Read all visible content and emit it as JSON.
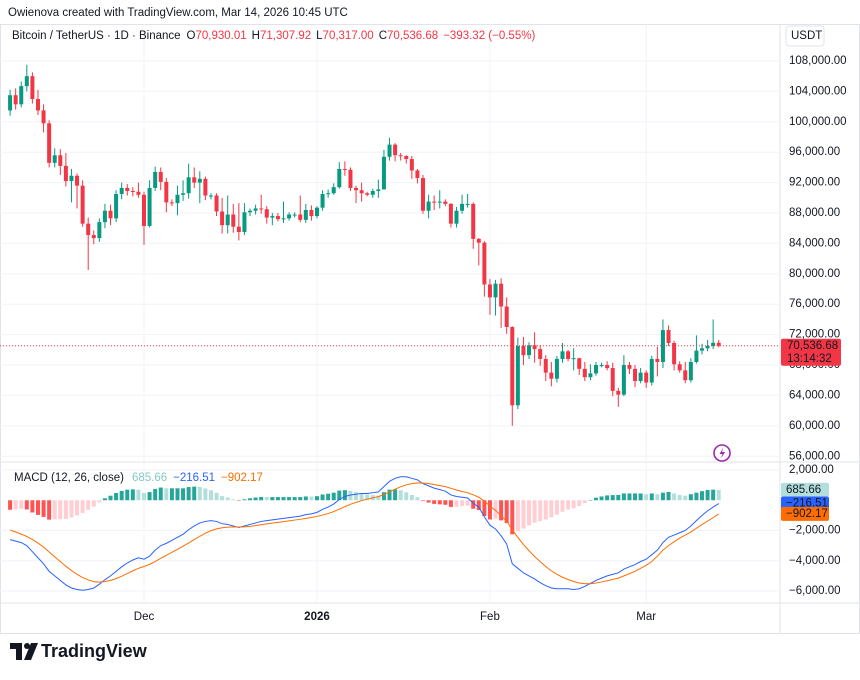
{
  "header": {
    "credit": "Owienova created with TradingView.com, Mar 14, 2026 10:45 UTC",
    "symbol": "Bitcoin / TetherUS · 1D · Binance",
    "ohlc": [
      {
        "key": "O",
        "value": "70,930.01"
      },
      {
        "key": "H",
        "value": "71,307.92"
      },
      {
        "key": "L",
        "value": "70,317.00"
      },
      {
        "key": "C",
        "value": "70,536.68"
      }
    ],
    "change": "−393.32 (−0.55%)"
  },
  "footer": {
    "brand": "TradingView"
  },
  "chart_data": {
    "type": "candlestick",
    "currency": "USDT",
    "categories": [
      null,
      null,
      null,
      null,
      null,
      null,
      null,
      null,
      null,
      null,
      null,
      null,
      null,
      null,
      null,
      null,
      null,
      null,
      null,
      null,
      null,
      null,
      null,
      null,
      "Dec",
      null,
      null,
      null,
      null,
      null,
      null,
      null,
      null,
      null,
      null,
      null,
      null,
      null,
      null,
      null,
      null,
      null,
      null,
      null,
      null,
      null,
      null,
      null,
      null,
      null,
      null,
      null,
      null,
      null,
      null,
      "2026",
      null,
      null,
      null,
      null,
      null,
      null,
      null,
      null,
      null,
      null,
      null,
      null,
      null,
      null,
      null,
      null,
      null,
      null,
      null,
      null,
      null,
      null,
      null,
      null,
      null,
      null,
      null,
      null,
      null,
      null,
      "Feb",
      null,
      null,
      null,
      null,
      null,
      null,
      null,
      null,
      null,
      null,
      null,
      null,
      null,
      null,
      null,
      null,
      null,
      null,
      null,
      null,
      null,
      null,
      null,
      null,
      null,
      null,
      null,
      "Mar",
      null,
      null,
      null,
      null,
      null,
      null,
      null,
      null,
      null,
      null,
      null,
      null,
      null
    ],
    "open": [
      101500,
      103500,
      102300,
      104700,
      106000,
      103000,
      101500,
      99800,
      94600,
      95600,
      94200,
      92200,
      92900,
      91600,
      86600,
      85100,
      84700,
      86800,
      88300,
      87300,
      90500,
      91300,
      90900,
      90800,
      90400,
      86300,
      91300,
      93400,
      92100,
      89400,
      89300,
      90400,
      90600,
      92700,
      92000,
      92500,
      90300,
      90300,
      88200,
      86400,
      87800,
      86200,
      85500,
      88100,
      88300,
      88600,
      88500,
      87400,
      87600,
      87200,
      87300,
      87800,
      87800,
      87100,
      88400,
      87600,
      88700,
      90500,
      90600,
      91400,
      93800,
      93700,
      91300,
      91000,
      90600,
      90400,
      90900,
      91100,
      95400,
      97000,
      95600,
      95500,
      95100,
      93600,
      92600,
      88300,
      89500,
      89400,
      89500,
      89200,
      86600,
      88300,
      89200,
      89200,
      84600,
      84100,
      78600,
      76900,
      78700,
      75700,
      73000,
      62700,
      70500,
      69300,
      70600,
      70100,
      68800,
      67000,
      66200,
      68800,
      69800,
      68800,
      68900,
      67500,
      66400,
      66900,
      68000,
      68000,
      67600,
      64600,
      64100,
      68000,
      67500,
      65900,
      67000,
      65700,
      68800,
      68400,
      72600,
      70900,
      68100,
      67300,
      66000,
      68400,
      69900,
      70200,
      70500,
      70930.01
    ],
    "high": [
      104200,
      104400,
      105300,
      107500,
      106500,
      104200,
      102300,
      100200,
      96500,
      96400,
      95900,
      93800,
      93200,
      92300,
      87400,
      85700,
      87300,
      89200,
      89100,
      91000,
      92000,
      91800,
      91400,
      92000,
      90800,
      92300,
      94100,
      94000,
      92600,
      89800,
      91600,
      92300,
      94500,
      94000,
      93500,
      92800,
      90600,
      90600,
      90000,
      90300,
      89200,
      89300,
      89300,
      88600,
      89100,
      90400,
      88900,
      88000,
      88000,
      89500,
      88100,
      88100,
      90300,
      89200,
      89000,
      88900,
      91000,
      91100,
      91900,
      94700,
      94800,
      94000,
      91600,
      92000,
      90800,
      91200,
      92400,
      96300,
      97900,
      97200,
      95900,
      95600,
      95500,
      93800,
      93000,
      90400,
      90300,
      91000,
      89800,
      89300,
      88800,
      90400,
      90500,
      89400,
      84700,
      84300,
      79300,
      79200,
      79400,
      76900,
      73100,
      71600,
      71700,
      71000,
      72300,
      70600,
      69300,
      68400,
      69200,
      70900,
      70000,
      70200,
      68900,
      68400,
      68100,
      68400,
      68300,
      68500,
      68300,
      65000,
      69300,
      68400,
      68000,
      67600,
      67300,
      69200,
      70400,
      74000,
      73200,
      71200,
      68500,
      68400,
      68900,
      71900,
      70800,
      71300,
      74000,
      71307.92
    ],
    "low": [
      100800,
      101600,
      101900,
      104000,
      102400,
      100900,
      98600,
      94000,
      94000,
      93000,
      91500,
      89400,
      88600,
      86200,
      80500,
      83900,
      84200,
      86000,
      86400,
      86800,
      89800,
      90300,
      90200,
      90000,
      83800,
      86100,
      90900,
      91000,
      88100,
      88900,
      87700,
      89600,
      89900,
      91300,
      89300,
      89700,
      89800,
      87600,
      85300,
      85300,
      85400,
      84400,
      85100,
      87600,
      87800,
      87900,
      86600,
      86400,
      86900,
      86700,
      87000,
      87400,
      86800,
      86700,
      87000,
      87300,
      88300,
      90000,
      90400,
      91200,
      92900,
      90900,
      89300,
      89500,
      90200,
      90000,
      90000,
      91100,
      94900,
      94800,
      94900,
      94500,
      92500,
      91900,
      87900,
      87300,
      88400,
      88600,
      88900,
      86100,
      86100,
      87900,
      88700,
      83300,
      81100,
      77000,
      74600,
      74500,
      72900,
      72100,
      60000,
      62200,
      68000,
      68800,
      68300,
      67900,
      65900,
      65200,
      65700,
      68300,
      68500,
      67300,
      66700,
      65900,
      66000,
      66600,
      67700,
      67300,
      63900,
      62500,
      63900,
      66800,
      65100,
      65600,
      65000,
      65300,
      66500,
      67600,
      70500,
      67300,
      67000,
      65600,
      65700,
      68200,
      69400,
      69800,
      70100,
      70317
    ],
    "close": [
      103500,
      102300,
      104700,
      106000,
      103000,
      101500,
      99800,
      94600,
      95600,
      94200,
      92200,
      92900,
      91600,
      86600,
      85100,
      84700,
      86800,
      88300,
      87300,
      90500,
      91300,
      90900,
      90800,
      90400,
      86300,
      91300,
      93400,
      92100,
      89400,
      89300,
      90400,
      90600,
      92700,
      92000,
      92500,
      90300,
      90300,
      88200,
      86400,
      87800,
      86200,
      85500,
      88100,
      88300,
      88600,
      88500,
      87400,
      87600,
      87200,
      87300,
      87800,
      87800,
      87100,
      88400,
      87600,
      88700,
      90500,
      90600,
      91400,
      93800,
      93700,
      91300,
      91000,
      90600,
      90400,
      90900,
      91100,
      95400,
      97000,
      95600,
      95500,
      95100,
      93600,
      92600,
      88300,
      89500,
      89400,
      89500,
      89200,
      86600,
      88300,
      89200,
      89200,
      84600,
      84100,
      78600,
      76900,
      78700,
      75700,
      73000,
      62700,
      70500,
      69300,
      70600,
      70100,
      68800,
      67000,
      66200,
      68800,
      69800,
      68800,
      68900,
      67500,
      66400,
      66900,
      68000,
      68000,
      67600,
      64600,
      64100,
      68000,
      67500,
      65900,
      67000,
      65700,
      68800,
      68400,
      72600,
      70900,
      68100,
      67300,
      66000,
      68400,
      69900,
      70200,
      70500,
      70930.01,
      70536.68
    ],
    "up_color": "#089981",
    "down_color": "#f23645",
    "last_price": {
      "label": "70,536.68",
      "countdown": "13:14:32"
    },
    "ylim": [
      55240,
      112080
    ],
    "yticks": [
      {
        "value": 56000,
        "label": "56,000.00"
      },
      {
        "value": 60000,
        "label": "60,000.00"
      },
      {
        "value": 64000,
        "label": "64,000.00"
      },
      {
        "value": 68000,
        "label": "68,000.00"
      },
      {
        "value": 72000,
        "label": "72,000.00"
      },
      {
        "value": 76000,
        "label": "76,000.00"
      },
      {
        "value": 80000,
        "label": "80,000.00"
      },
      {
        "value": 84000,
        "label": "84,000.00"
      },
      {
        "value": 88000,
        "label": "88,000.00"
      },
      {
        "value": 92000,
        "label": "92,000.00"
      },
      {
        "value": 96000,
        "label": "96,000.00"
      },
      {
        "value": 100000,
        "label": "100,000.00"
      },
      {
        "value": 104000,
        "label": "104,000.00"
      },
      {
        "value": 108000,
        "label": "108,000.00"
      }
    ],
    "grid": true,
    "macd": {
      "title": "MACD (12, 26, close)",
      "ylim": [
        -6595,
        2529
      ],
      "yticks": [
        {
          "value": 2000,
          "label": "2,000.00"
        },
        {
          "value": -2000,
          "label": "−2,000.00"
        },
        {
          "value": -4000,
          "label": "−4,000.00"
        },
        {
          "value": -6000,
          "label": "−6,000.00"
        }
      ],
      "histogram": {
        "colors": {
          "rise_up": "#26a69a",
          "fall_up": "#b2dfdb",
          "fall_down": "#ff5252",
          "rise_down": "#ffcdd2"
        },
        "last_label": "685.66",
        "values": [
          -630,
          -600,
          -560,
          -610,
          -810,
          -970,
          -1100,
          -1280,
          -1260,
          -1250,
          -1240,
          -1150,
          -1000,
          -840,
          -630,
          -420,
          -140,
          130,
          300,
          480,
          620,
          700,
          720,
          700,
          480,
          540,
          750,
          840,
          790,
          790,
          790,
          790,
          870,
          900,
          880,
          780,
          660,
          490,
          270,
          180,
          60,
          -30,
          60,
          130,
          180,
          220,
          210,
          210,
          210,
          210,
          210,
          210,
          210,
          250,
          240,
          270,
          380,
          430,
          500,
          640,
          670,
          620,
          540,
          470,
          380,
          340,
          310,
          530,
          700,
          720,
          660,
          530,
          350,
          200,
          -40,
          -150,
          -240,
          -270,
          -300,
          -440,
          -430,
          -380,
          -350,
          -560,
          -650,
          -1040,
          -1270,
          -1220,
          -1330,
          -1510,
          -2250,
          -2040,
          -1870,
          -1660,
          -1480,
          -1390,
          -1270,
          -1130,
          -950,
          -760,
          -610,
          -530,
          -380,
          -180,
          20,
          170,
          250,
          320,
          340,
          350,
          450,
          450,
          450,
          450,
          400,
          450,
          400,
          500,
          550,
          450,
          350,
          300,
          400,
          500,
          600,
          680,
          700,
          685.66
        ]
      },
      "line": {
        "color": "#2962ff",
        "last_label": "−216.51",
        "values": [
          -2600,
          -2700,
          -2800,
          -3000,
          -3400,
          -3800,
          -4200,
          -4700,
          -5000,
          -5300,
          -5600,
          -5800,
          -5900,
          -5950,
          -5900,
          -5800,
          -5550,
          -5250,
          -5000,
          -4700,
          -4400,
          -4150,
          -3950,
          -3800,
          -3900,
          -3700,
          -3300,
          -3000,
          -2850,
          -2650,
          -2450,
          -2250,
          -1950,
          -1700,
          -1500,
          -1400,
          -1350,
          -1400,
          -1550,
          -1600,
          -1700,
          -1800,
          -1700,
          -1600,
          -1500,
          -1400,
          -1350,
          -1300,
          -1250,
          -1200,
          -1150,
          -1100,
          -1050,
          -950,
          -900,
          -800,
          -600,
          -450,
          -250,
          50,
          250,
          350,
          400,
          450,
          450,
          500,
          550,
          900,
          1250,
          1450,
          1550,
          1550,
          1450,
          1350,
          1100,
          950,
          800,
          700,
          600,
          350,
          250,
          200,
          150,
          -200,
          -450,
          -1100,
          -1650,
          -1900,
          -2350,
          -2900,
          -4200,
          -4500,
          -4800,
          -5000,
          -5200,
          -5450,
          -5650,
          -5800,
          -5850,
          -5850,
          -5850,
          -5900,
          -5850,
          -5700,
          -5500,
          -5300,
          -5150,
          -5000,
          -4900,
          -4800,
          -4550,
          -4400,
          -4250,
          -4050,
          -3900,
          -3600,
          -3300,
          -2800,
          -2450,
          -2300,
          -2150,
          -2000,
          -1700,
          -1350,
          -1000,
          -700,
          -450,
          -216.51
        ]
      },
      "signal": {
        "color": "#ff6d00",
        "last_label": "−902.17",
        "values": [
          -1970,
          -2100,
          -2240,
          -2390,
          -2590,
          -2830,
          -3100,
          -3420,
          -3740,
          -4050,
          -4360,
          -4650,
          -4900,
          -5110,
          -5270,
          -5380,
          -5410,
          -5380,
          -5300,
          -5180,
          -5020,
          -4850,
          -4670,
          -4500,
          -4380,
          -4240,
          -4050,
          -3840,
          -3640,
          -3440,
          -3240,
          -3040,
          -2820,
          -2600,
          -2380,
          -2180,
          -2010,
          -1890,
          -1820,
          -1780,
          -1760,
          -1770,
          -1760,
          -1730,
          -1680,
          -1620,
          -1560,
          -1510,
          -1460,
          -1410,
          -1360,
          -1310,
          -1260,
          -1200,
          -1140,
          -1070,
          -980,
          -880,
          -750,
          -590,
          -420,
          -270,
          -140,
          -20,
          70,
          160,
          240,
          370,
          550,
          730,
          890,
          1020,
          1100,
          1150,
          1140,
          1100,
          1040,
          970,
          900,
          790,
          680,
          580,
          500,
          360,
          200,
          -60,
          -380,
          -680,
          -1020,
          -1390,
          -1950,
          -2460,
          -2930,
          -3340,
          -3720,
          -4060,
          -4380,
          -4670,
          -4900,
          -5090,
          -5240,
          -5370,
          -5470,
          -5520,
          -5520,
          -5470,
          -5400,
          -5320,
          -5240,
          -5150,
          -5000,
          -4850,
          -4700,
          -4500,
          -4300,
          -4050,
          -3700,
          -3300,
          -3000,
          -2750,
          -2500,
          -2300,
          -2100,
          -1850,
          -1600,
          -1380,
          -1150,
          -902.17
        ]
      }
    }
  }
}
